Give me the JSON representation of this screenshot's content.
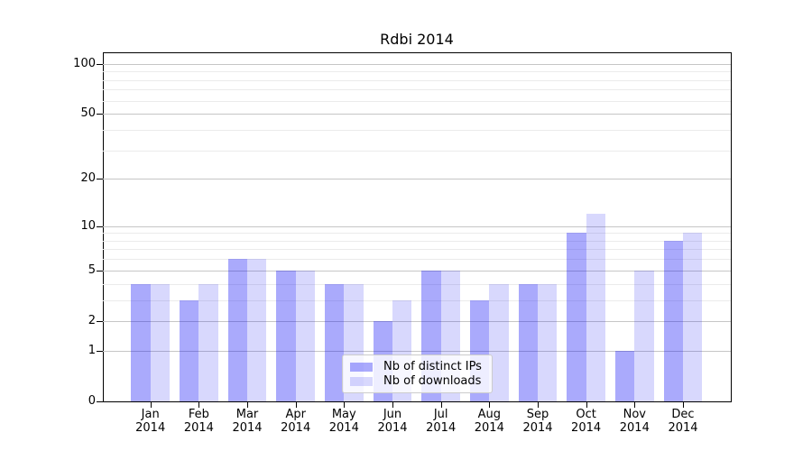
{
  "chart_data": {
    "type": "bar",
    "title": "Rdbi 2014",
    "categories": [
      {
        "month": "Jan",
        "year": "2014"
      },
      {
        "month": "Feb",
        "year": "2014"
      },
      {
        "month": "Mar",
        "year": "2014"
      },
      {
        "month": "Apr",
        "year": "2014"
      },
      {
        "month": "May",
        "year": "2014"
      },
      {
        "month": "Jun",
        "year": "2014"
      },
      {
        "month": "Jul",
        "year": "2014"
      },
      {
        "month": "Aug",
        "year": "2014"
      },
      {
        "month": "Sep",
        "year": "2014"
      },
      {
        "month": "Oct",
        "year": "2014"
      },
      {
        "month": "Nov",
        "year": "2014"
      },
      {
        "month": "Dec",
        "year": "2014"
      }
    ],
    "series": [
      {
        "name": "Nb of distinct IPs",
        "color": "rgba(10,10,245,0.345)",
        "values": [
          4,
          3,
          6,
          5,
          4,
          2,
          5,
          3,
          4,
          9,
          1,
          8
        ]
      },
      {
        "name": "Nb of downloads",
        "color": "rgba(10,10,245,0.16)",
        "values": [
          4,
          4,
          6,
          5,
          4,
          3,
          5,
          4,
          4,
          12,
          5,
          9
        ]
      }
    ],
    "y_axis": {
      "scale": "log10(1+y)",
      "max": 100,
      "ticks": [
        0,
        1,
        2,
        5,
        10,
        20,
        50,
        100
      ],
      "minor_ticks": [
        3,
        4,
        6,
        7,
        8,
        9,
        30,
        40,
        60,
        70,
        80,
        90
      ]
    },
    "legend": {
      "position": "lower center"
    },
    "colors": {
      "grid_major": "#c6c6c6",
      "grid_minor": "#ebebeb",
      "spine": "#000000",
      "background": "#ffffff"
    }
  }
}
